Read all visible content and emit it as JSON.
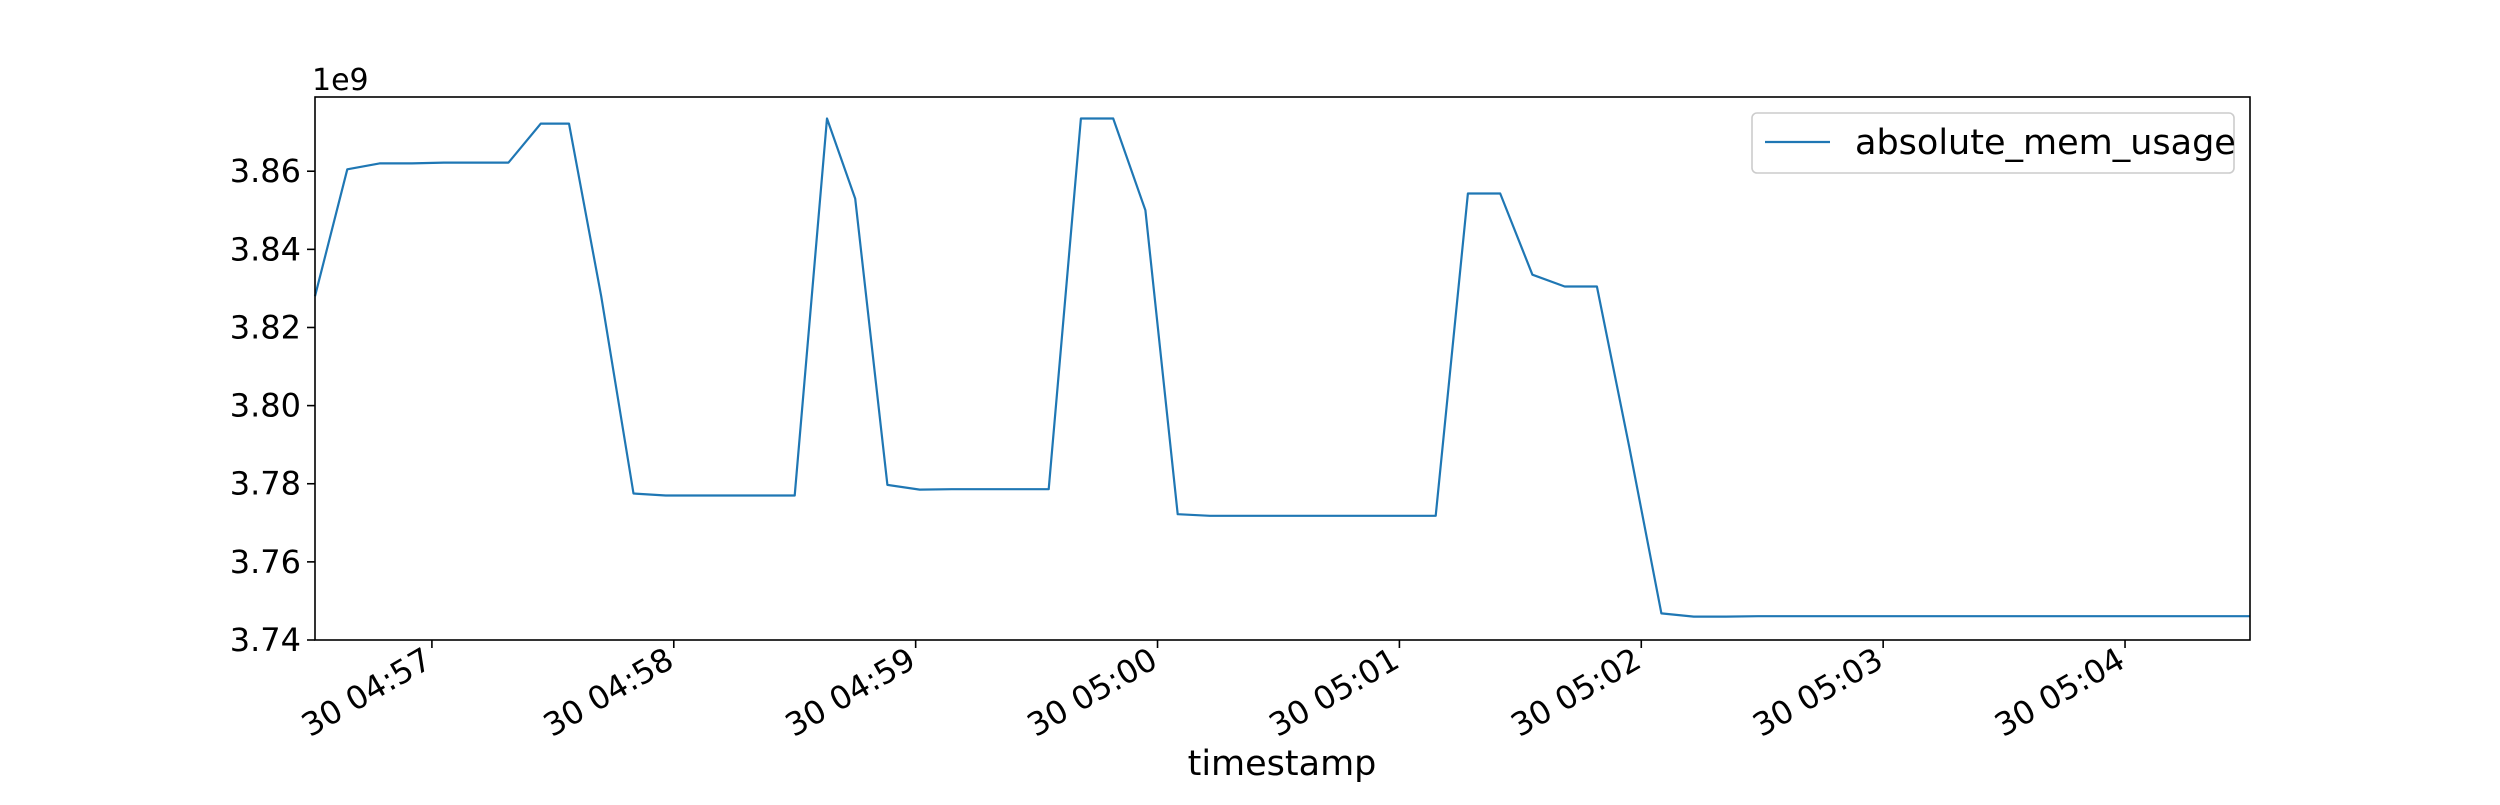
{
  "chart_data": {
    "type": "line",
    "title": "",
    "xlabel": "timestamp",
    "ylabel": "",
    "y_offset_label": "1e9",
    "x_tick_labels": [
      "30 04:57",
      "30 04:58",
      "30 04:59",
      "30 05:00",
      "30 05:01",
      "30 05:02",
      "30 05:03",
      "30 05:04"
    ],
    "x_tick_values": [
      "04:57:00",
      "04:58:00",
      "04:59:00",
      "05:00:00",
      "05:01:00",
      "05:02:00",
      "05:03:00",
      "05:04:00"
    ],
    "xlim": [
      "04:56:31",
      "05:04:31"
    ],
    "y_tick_labels": [
      "3.74",
      "3.76",
      "3.78",
      "3.80",
      "3.82",
      "3.84",
      "3.86"
    ],
    "y_tick_values": [
      3.74,
      3.76,
      3.78,
      3.8,
      3.82,
      3.84,
      3.86
    ],
    "ylim": [
      3.74,
      3.879
    ],
    "grid": false,
    "legend_position": "top-right",
    "series": [
      {
        "name": "absolute_mem_usage",
        "color": "#1f77b4",
        "x": [
          "04:56:31",
          "04:56:39",
          "04:56:47",
          "04:56:55",
          "04:57:03",
          "04:57:11",
          "04:57:19",
          "04:57:27",
          "04:57:34",
          "04:57:42",
          "04:57:50",
          "04:57:58",
          "04:58:06",
          "04:58:14",
          "04:58:22",
          "04:58:30",
          "04:58:38",
          "04:58:45",
          "04:58:53",
          "04:59:01",
          "04:59:09",
          "04:59:17",
          "04:59:25",
          "04:59:33",
          "04:59:41",
          "04:59:49",
          "04:59:57",
          "05:00:05",
          "05:00:13",
          "05:00:21",
          "05:00:29",
          "05:00:37",
          "05:00:45",
          "05:00:53",
          "05:01:01",
          "05:01:09",
          "05:01:17",
          "05:01:25",
          "05:01:33",
          "05:01:41",
          "05:01:49",
          "05:01:57",
          "05:02:05",
          "05:02:13",
          "05:02:21",
          "05:02:29",
          "05:02:37",
          "05:02:45",
          "05:02:53",
          "05:03:01",
          "05:03:09",
          "05:03:17",
          "05:03:25",
          "05:03:33",
          "05:03:41",
          "05:03:49",
          "05:03:57",
          "05:04:05",
          "05:04:13",
          "05:04:21",
          "05:04:31"
        ],
        "y": [
          3.828,
          3.8605,
          3.862,
          3.862,
          3.8622,
          3.8622,
          3.8622,
          3.8722,
          3.8722,
          3.828,
          3.7775,
          3.777,
          3.777,
          3.777,
          3.777,
          3.777,
          3.8735,
          3.853,
          3.7797,
          3.7785,
          3.7786,
          3.7786,
          3.7786,
          3.7786,
          3.8735,
          3.8735,
          3.85,
          3.7722,
          3.7718,
          3.7718,
          3.7718,
          3.7718,
          3.7718,
          3.7718,
          3.7718,
          3.7718,
          3.8543,
          3.8543,
          3.8335,
          3.8305,
          3.8305,
          3.7895,
          3.7468,
          3.746,
          3.746,
          3.7461,
          3.7461,
          3.7461,
          3.7461,
          3.7461,
          3.7461,
          3.7461,
          3.7461,
          3.7461,
          3.7461,
          3.7461,
          3.7461,
          3.7461,
          3.7461,
          3.7461,
          3.7461
        ]
      }
    ]
  }
}
